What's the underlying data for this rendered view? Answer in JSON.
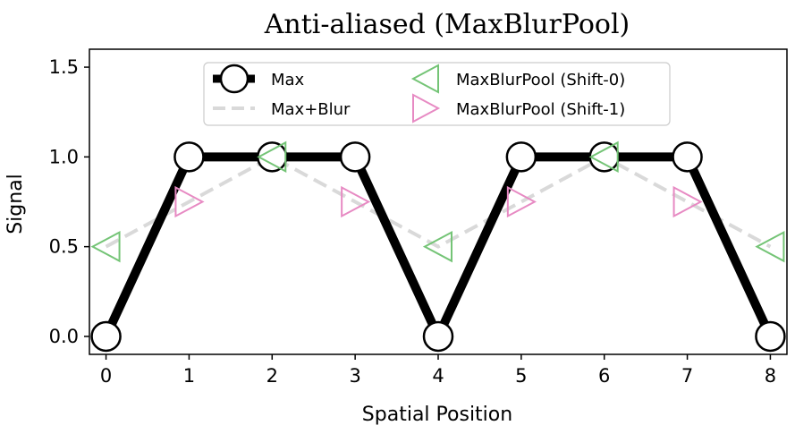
{
  "chart_data": {
    "type": "line",
    "title": "Anti-aliased (MaxBlurPool)",
    "xlabel": "Spatial Position",
    "ylabel": "Signal",
    "xlim": [
      -0.2,
      8.2
    ],
    "ylim": [
      -0.1,
      1.6
    ],
    "xticks": [
      0,
      1,
      2,
      3,
      4,
      5,
      6,
      7,
      8
    ],
    "yticks": [
      0.0,
      0.5,
      1.0,
      1.5
    ],
    "ytick_labels": [
      "0.0",
      "0.5",
      "1.0",
      "1.5"
    ],
    "grid": false,
    "legend_position": "top-center",
    "series": [
      {
        "name": "Max",
        "style": "solid-thick-circle",
        "color": "#000000",
        "x": [
          0,
          1,
          2,
          3,
          4,
          5,
          6,
          7,
          8
        ],
        "y": [
          0,
          1,
          1,
          1,
          0,
          1,
          1,
          1,
          0
        ]
      },
      {
        "name": "Max+Blur",
        "style": "dashed",
        "color": "#d9d9d9",
        "x": [
          0,
          1,
          2,
          3,
          4,
          5,
          6,
          7,
          8
        ],
        "y": [
          0.5,
          0.75,
          1.0,
          0.75,
          0.5,
          0.75,
          1.0,
          0.75,
          0.5
        ]
      },
      {
        "name": "MaxBlurPool (Shift-0)",
        "style": "triangle-left",
        "color": "#74c476",
        "x": [
          0,
          2,
          4,
          6,
          8
        ],
        "y": [
          0.5,
          1.0,
          0.5,
          1.0,
          0.5
        ]
      },
      {
        "name": "MaxBlurPool (Shift-1)",
        "style": "triangle-right",
        "color": "#e78ac3",
        "x": [
          1,
          3,
          5,
          7
        ],
        "y": [
          0.75,
          0.75,
          0.75,
          0.75
        ]
      }
    ]
  }
}
